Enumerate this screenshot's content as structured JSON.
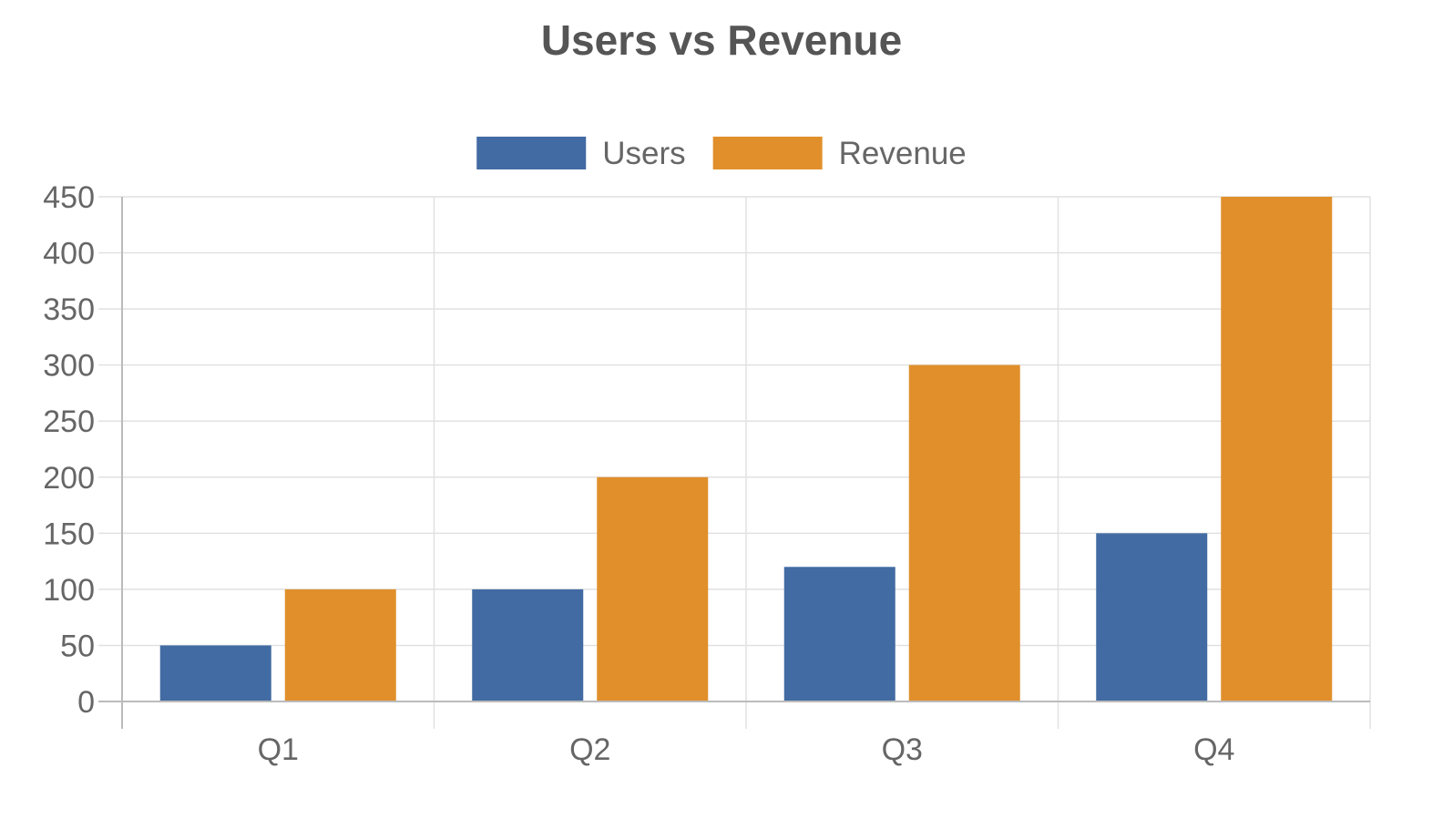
{
  "chart_data": {
    "type": "bar",
    "title": "Users vs Revenue",
    "xlabel": "",
    "ylabel": "",
    "categories": [
      "Q1",
      "Q2",
      "Q3",
      "Q4"
    ],
    "series": [
      {
        "name": "Users",
        "color": "#426ba3",
        "values": [
          50,
          100,
          120,
          150
        ]
      },
      {
        "name": "Revenue",
        "color": "#e08f2b",
        "values": [
          100,
          200,
          300,
          450
        ]
      }
    ],
    "ylim": [
      0,
      450
    ],
    "yticks": [
      0,
      50,
      100,
      150,
      200,
      250,
      300,
      350,
      400,
      450
    ],
    "grid": true,
    "legend_position": "top"
  }
}
